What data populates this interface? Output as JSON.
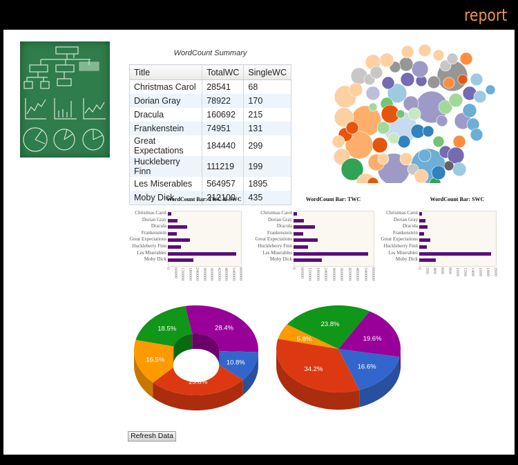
{
  "header": {
    "brand": "report",
    "brand_color": "#f0963a"
  },
  "summary_table": {
    "title": "WordCount Summary",
    "columns": [
      "Title",
      "TotalWC",
      "SingleWC"
    ],
    "rows": [
      {
        "title": "Christmas Carol",
        "total": "28541",
        "single": "68"
      },
      {
        "title": "Dorian Gray",
        "total": "78922",
        "single": "170"
      },
      {
        "title": "Dracula",
        "total": "160692",
        "single": "215"
      },
      {
        "title": "Frankenstein",
        "total": "74951",
        "single": "131"
      },
      {
        "title": "Great Expectations",
        "total": "184440",
        "single": "299"
      },
      {
        "title": "Huckleberry Finn",
        "total": "111219",
        "single": "199"
      },
      {
        "title": "Les Miserables",
        "total": "564957",
        "single": "1895"
      },
      {
        "title": "Moby Dick",
        "total": "212100",
        "single": "435"
      }
    ]
  },
  "refresh_button": {
    "label": "Refresh Data"
  },
  "chart_data": [
    {
      "type": "bar",
      "orientation": "horizontal",
      "title": "WordCount Bar: TWC & SWC",
      "categories": [
        "Christmas Carol",
        "Dorian Gray",
        "Dracula",
        "Frankenstein",
        "Great Expectations",
        "Huckleberry Finn",
        "Les Miserables",
        "Moby Dick"
      ],
      "series": [
        {
          "name": "TWC",
          "values": [
            28541,
            78922,
            160692,
            74951,
            184440,
            111219,
            564957,
            212100
          ]
        },
        {
          "name": "SWC",
          "values": [
            68,
            170,
            215,
            131,
            299,
            199,
            1895,
            435
          ]
        }
      ],
      "xticks": [
        "0",
        "60000",
        "120000",
        "180000",
        "240000",
        "300000",
        "360000",
        "420000",
        "480000",
        "540000",
        "600000"
      ],
      "xlim": [
        0,
        600000
      ],
      "color": "#5b0e7b"
    },
    {
      "type": "bar",
      "orientation": "horizontal",
      "title": "WordCount Bar: TWC",
      "categories": [
        "Christmas Carol",
        "Dorian Gray",
        "Dracula",
        "Frankenstein",
        "Great Expectations",
        "Huckleberry Finn",
        "Les Miserables",
        "Moby Dick"
      ],
      "values": [
        28541,
        78922,
        160692,
        74951,
        184440,
        111219,
        564957,
        212100
      ],
      "xticks": [
        "0",
        "60000",
        "120000",
        "180000",
        "240000",
        "300000",
        "360000",
        "420000",
        "480000",
        "540000",
        "600000"
      ],
      "xlim": [
        0,
        600000
      ],
      "color": "#5b0e7b"
    },
    {
      "type": "bar",
      "orientation": "horizontal",
      "title": "WordCount Bar: SWC",
      "categories": [
        "Christmas Carol",
        "Dorian Gray",
        "Dracula",
        "Frankenstein",
        "Great Expectations",
        "Huckleberry Finn",
        "Les Miserables",
        "Moby Dick"
      ],
      "values": [
        68,
        170,
        215,
        131,
        299,
        199,
        1895,
        435
      ],
      "xticks": [
        "0",
        "200",
        "400",
        "600",
        "800",
        "1000",
        "1200",
        "1400",
        "1600",
        "1800",
        "2000"
      ],
      "xlim": [
        0,
        2000
      ],
      "color": "#5b0e7b"
    },
    {
      "type": "pie",
      "style": "3d-donut",
      "slices": [
        {
          "label": "28.4%",
          "value": 28.4,
          "color": "#990099"
        },
        {
          "label": "10.8%",
          "value": 10.8,
          "color": "#3366cc"
        },
        {
          "label": "25.8%",
          "value": 25.8,
          "color": "#dc3912"
        },
        {
          "label": "16.5%",
          "value": 16.5,
          "color": "#ff9900"
        },
        {
          "label": "18.5%",
          "value": 18.5,
          "color": "#109618"
        }
      ]
    },
    {
      "type": "pie",
      "style": "3d",
      "slices": [
        {
          "label": "19.6%",
          "value": 19.6,
          "color": "#990099"
        },
        {
          "label": "16.6%",
          "value": 16.6,
          "color": "#3366cc"
        },
        {
          "label": "34.2%",
          "value": 34.2,
          "color": "#dc3912"
        },
        {
          "label": "5.8%",
          "value": 5.8,
          "color": "#ff9900"
        },
        {
          "label": "23.8%",
          "value": 23.8,
          "color": "#109618"
        }
      ]
    },
    {
      "type": "scatter",
      "style": "packed-bubble",
      "note": "bubble labels not legible",
      "palette": [
        "#fdd0a2",
        "#fdae6b",
        "#fd8d3c",
        "#e6550d",
        "#c7c7c7",
        "#969696",
        "#636363",
        "#bcbddc",
        "#9e9ac8",
        "#756bb1",
        "#c6dbef",
        "#9ecae1",
        "#6baed6",
        "#3182bd",
        "#c7e9c0",
        "#a1d99b",
        "#74c476",
        "#31a354"
      ]
    }
  ]
}
